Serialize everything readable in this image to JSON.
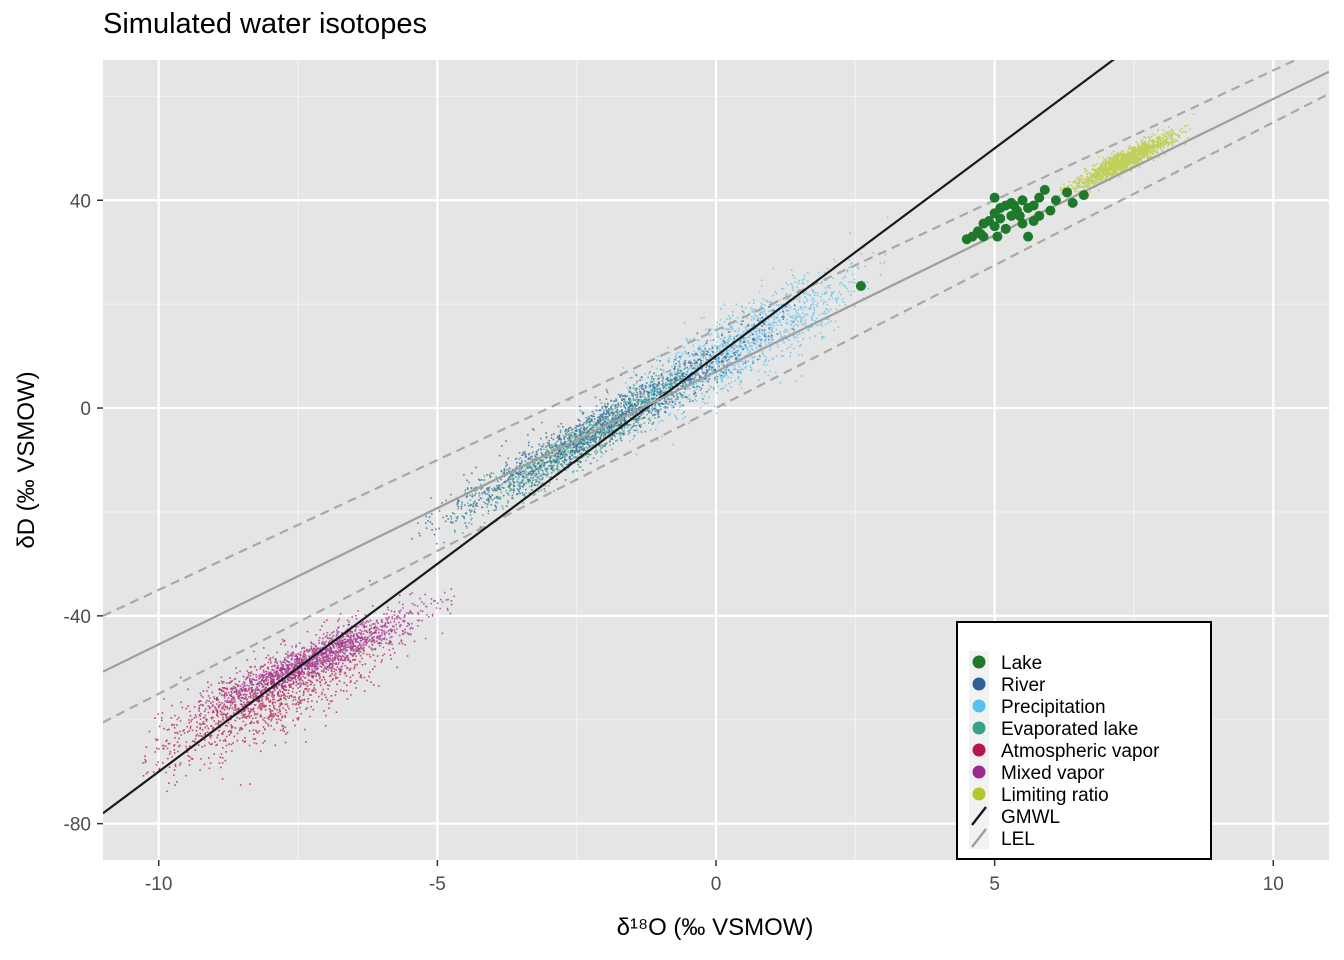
{
  "chart_data": {
    "type": "scatter",
    "title": "Simulated water isotopes",
    "xlabel": "δ¹⁸O (‰ VSMOW)",
    "ylabel": "δD (‰ VSMOW)",
    "xlim": [
      -11,
      11
    ],
    "ylim": [
      -87,
      67
    ],
    "x_ticks": [
      -10,
      -5,
      0,
      5,
      10
    ],
    "x_tick_labels": [
      "-10",
      "-5",
      "0",
      "5",
      "10"
    ],
    "y_ticks": [
      -80,
      -40,
      0,
      40
    ],
    "y_tick_labels": [
      "-80",
      "-40",
      "0",
      "40"
    ],
    "grid": true,
    "legend_position": "bottom-right",
    "series": [
      {
        "name": "Lake",
        "kind": "points",
        "color": "#1e7a2a",
        "points": [
          [
            4.5,
            32.5
          ],
          [
            4.7,
            34.0
          ],
          [
            4.8,
            35.5
          ],
          [
            4.8,
            33.0
          ],
          [
            4.9,
            36.0
          ],
          [
            5.0,
            37.5
          ],
          [
            5.0,
            35.0
          ],
          [
            5.05,
            33.0
          ],
          [
            5.1,
            38.5
          ],
          [
            5.1,
            36.5
          ],
          [
            5.2,
            39.0
          ],
          [
            5.2,
            34.5
          ],
          [
            5.3,
            37.0
          ],
          [
            5.3,
            39.5
          ],
          [
            5.4,
            38.0
          ],
          [
            5.5,
            40.0
          ],
          [
            5.5,
            35.5
          ],
          [
            5.6,
            38.5
          ],
          [
            5.6,
            33.0
          ],
          [
            5.7,
            39.0
          ],
          [
            5.7,
            36.0
          ],
          [
            5.8,
            40.5
          ],
          [
            5.8,
            37.0
          ],
          [
            5.9,
            42.0
          ],
          [
            6.0,
            38.0
          ],
          [
            6.1,
            40.0
          ],
          [
            6.3,
            41.5
          ],
          [
            6.4,
            39.5
          ],
          [
            6.6,
            41.0
          ],
          [
            4.6,
            33.0
          ],
          [
            4.75,
            33.5
          ],
          [
            5.0,
            40.5
          ],
          [
            5.35,
            39.0
          ],
          [
            5.45,
            37.0
          ],
          [
            2.6,
            23.5
          ]
        ]
      },
      {
        "name": "River",
        "kind": "cloud",
        "color": "#2e5f95",
        "x_range": [
          -5.2,
          1.2
        ],
        "center_x": -2.0,
        "slope": 6.2,
        "y_intercept": 9.5,
        "spread": 2.3
      },
      {
        "name": "Precipitation",
        "kind": "cloud",
        "color": "#56c1ec",
        "x_range": [
          -1.8,
          2.8
        ],
        "center_x": 0.4,
        "slope": 6.0,
        "y_intercept": 9.5,
        "spread": 3.5
      },
      {
        "name": "Evaporated lake",
        "kind": "cloud",
        "color": "#36a28a",
        "x_range": [
          -4.5,
          0.0
        ],
        "center_x": -2.3,
        "slope": 6.3,
        "y_intercept": 9.0,
        "spread": 2.0
      },
      {
        "name": "Atmospheric vapor",
        "kind": "cloud",
        "color": "#b5164e",
        "x_range": [
          -10.0,
          -5.5
        ],
        "center_x": -8.0,
        "slope": 5.0,
        "y_intercept": -15.0,
        "spread": 3.8
      },
      {
        "name": "Mixed vapor",
        "kind": "cloud",
        "color": "#9b2a8e",
        "x_range": [
          -9.0,
          -5.0
        ],
        "center_x": -7.2,
        "slope": 4.6,
        "y_intercept": -15.0,
        "spread": 1.8
      },
      {
        "name": "Limiting ratio",
        "kind": "cloud",
        "color": "#b3c72a",
        "x_range": [
          6.4,
          8.3
        ],
        "center_x": 7.3,
        "slope": 5.3,
        "y_intercept": 9.0,
        "spread": 1.0
      }
    ],
    "lines": [
      {
        "name": "GMWL",
        "color": "#1a1a1a",
        "slope": 8,
        "intercept": 10,
        "dashed": false
      },
      {
        "name": "LEL",
        "color": "#9e9e9e",
        "slope": 5.25,
        "intercept": 7,
        "dashed": false
      },
      {
        "name": "LEL upper bound",
        "color": "#a8a8a8",
        "slope": 5.0,
        "intercept": 15,
        "dashed": true
      },
      {
        "name": "LEL lower bound",
        "color": "#a8a8a8",
        "slope": 5.5,
        "intercept": 0,
        "dashed": true
      }
    ],
    "legend": [
      "Lake",
      "River",
      "Precipitation",
      "Evaporated lake",
      "Atmospheric vapor",
      "Mixed vapor",
      "Limiting ratio",
      "GMWL",
      "LEL"
    ]
  }
}
